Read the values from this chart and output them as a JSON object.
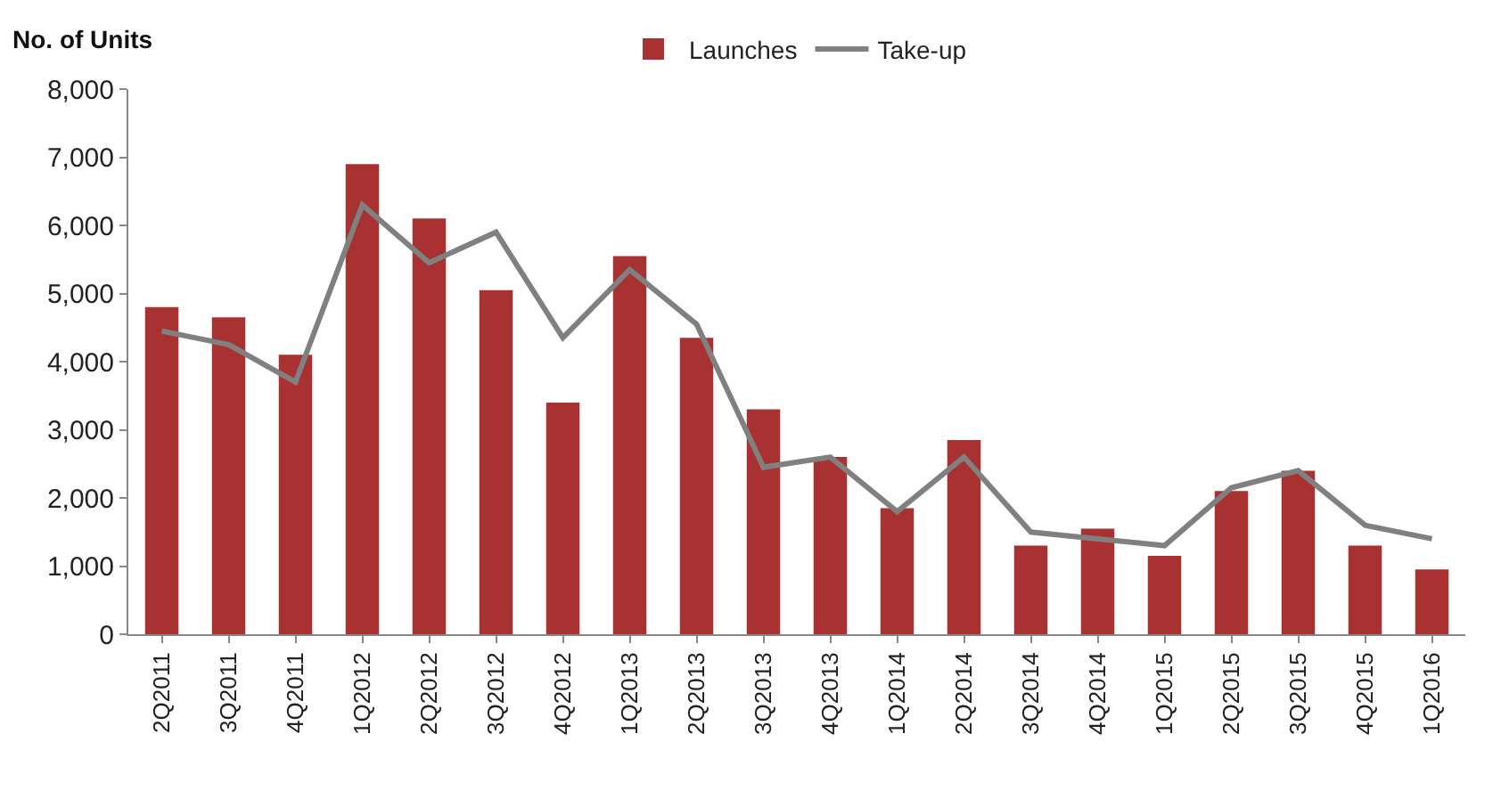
{
  "chart_data": {
    "type": "bar",
    "ylabel": "No. of Units",
    "categories": [
      "2Q2011",
      "3Q2011",
      "4Q2011",
      "1Q2012",
      "2Q2012",
      "3Q2012",
      "4Q2012",
      "1Q2013",
      "2Q2013",
      "3Q2013",
      "4Q2013",
      "1Q2014",
      "2Q2014",
      "3Q2014",
      "4Q2014",
      "1Q2015",
      "2Q2015",
      "3Q2015",
      "4Q2015",
      "1Q2016"
    ],
    "series": [
      {
        "name": "Launches",
        "color": "#a83232",
        "values": [
          4800,
          4650,
          4100,
          6900,
          6100,
          5050,
          3400,
          5550,
          4350,
          3300,
          2600,
          1850,
          2850,
          1300,
          1550,
          1150,
          2100,
          2400,
          1300,
          950
        ]
      },
      {
        "name": "Take-up",
        "type": "line",
        "color": "#808080",
        "values": [
          4450,
          4250,
          3700,
          6300,
          5450,
          5900,
          4350,
          5350,
          4550,
          2450,
          2600,
          1800,
          2600,
          1500,
          1400,
          1300,
          2150,
          2400,
          1600,
          1400
        ]
      }
    ],
    "ylim": [
      0,
      8000
    ],
    "yticks": [
      {
        "value": 0,
        "label": "0"
      },
      {
        "value": 1000,
        "label": "1,000"
      },
      {
        "value": 2000,
        "label": "2,000"
      },
      {
        "value": 3000,
        "label": "3,000"
      },
      {
        "value": 4000,
        "label": "4,000"
      },
      {
        "value": 5000,
        "label": "5,000"
      },
      {
        "value": 6000,
        "label": "6,000"
      },
      {
        "value": 7000,
        "label": "7,000"
      },
      {
        "value": 8000,
        "label": "8,000"
      }
    ],
    "grid": false,
    "legend": "top"
  }
}
